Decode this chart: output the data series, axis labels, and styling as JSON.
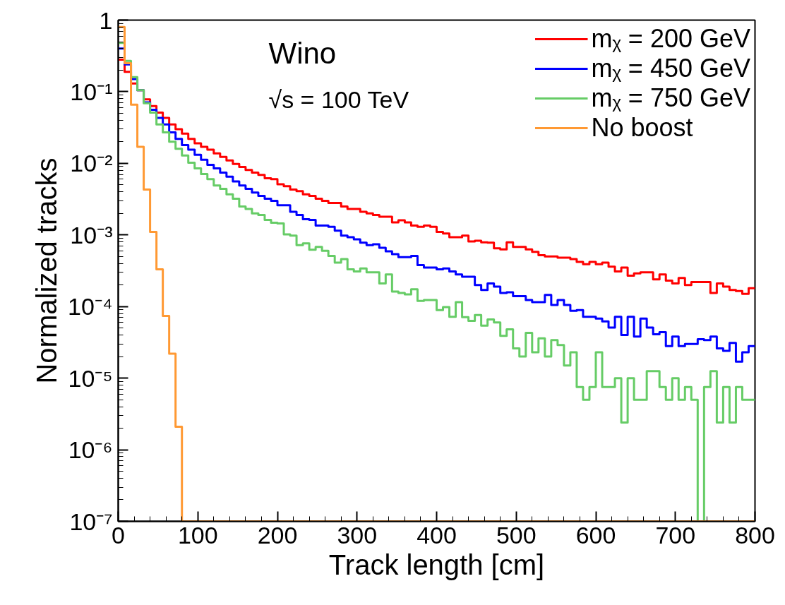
{
  "chart_data": {
    "type": "histogram",
    "xlabel": "Track length [cm]",
    "ylabel": "Normalized tracks",
    "annotations": [
      "Wino",
      "√s = 100 TeV"
    ],
    "bins": [
      0,
      8,
      16,
      24,
      32,
      40,
      48,
      56,
      64,
      72,
      80,
      88,
      96,
      104,
      112,
      120,
      128,
      136,
      144,
      152,
      160,
      168,
      176,
      184,
      192,
      200,
      208,
      216,
      224,
      232,
      240,
      248,
      256,
      264,
      272,
      280,
      288,
      296,
      304,
      312,
      320,
      328,
      336,
      344,
      352,
      360,
      368,
      376,
      384,
      392,
      400,
      408,
      416,
      424,
      432,
      440,
      448,
      456,
      464,
      472,
      480,
      488,
      496,
      504,
      512,
      520,
      528,
      536,
      544,
      552,
      560,
      568,
      576,
      584,
      592,
      600,
      608,
      616,
      624,
      632,
      640,
      648,
      656,
      664,
      672,
      680,
      688,
      696,
      704,
      712,
      720,
      728,
      736,
      744,
      752,
      760,
      768,
      776,
      784,
      792,
      800
    ],
    "series": [
      {
        "name": "mᵪ = 200 GeV",
        "color": "#ff0000",
        "values": [
          0.28,
          0.19,
          0.13,
          0.105,
          0.078,
          0.063,
          0.051,
          0.043,
          0.035,
          0.03,
          0.026,
          0.022,
          0.019,
          0.017,
          0.0155,
          0.0138,
          0.0123,
          0.011,
          0.0098,
          0.0089,
          0.0081,
          0.0074,
          0.0069,
          0.0062,
          0.006,
          0.0051,
          0.0048,
          0.0043,
          0.0041,
          0.0037,
          0.0035,
          0.0032,
          0.003,
          0.0028,
          0.0028,
          0.0025,
          0.0023,
          0.0023,
          0.0021,
          0.002,
          0.0019,
          0.0018,
          0.0018,
          0.0015,
          0.0016,
          0.0015,
          0.00135,
          0.0013,
          0.00135,
          0.0013,
          0.0011,
          0.00105,
          0.00093,
          0.00093,
          0.00098,
          0.00081,
          0.00083,
          0.00079,
          0.00078,
          0.00065,
          0.00063,
          0.00079,
          0.00068,
          0.00068,
          0.00063,
          0.00058,
          0.00052,
          0.0005,
          0.0005,
          0.00048,
          0.00048,
          0.00046,
          0.00042,
          0.00039,
          0.00042,
          0.00039,
          0.00041,
          0.00036,
          0.00031,
          0.00035,
          0.00027,
          0.00029,
          0.0003,
          0.0003,
          0.00024,
          0.00028,
          0.00023,
          0.00021,
          0.00025,
          0.0002,
          0.00022,
          0.00022,
          0.00022,
          0.000155,
          0.00021,
          0.00019,
          0.00017,
          0.000165,
          0.00015,
          0.00018
        ]
      },
      {
        "name": "mᵪ = 450 GeV",
        "color": "#0000ff",
        "values": [
          0.4,
          0.24,
          0.15,
          0.105,
          0.071,
          0.056,
          0.043,
          0.035,
          0.027,
          0.022,
          0.018,
          0.0155,
          0.0132,
          0.0112,
          0.0095,
          0.0085,
          0.0074,
          0.0065,
          0.0056,
          0.0049,
          0.0044,
          0.0039,
          0.0035,
          0.0032,
          0.003,
          0.0026,
          0.0026,
          0.0021,
          0.0019,
          0.00166,
          0.00162,
          0.00135,
          0.00135,
          0.0013,
          0.00115,
          0.00098,
          0.00093,
          0.00087,
          0.00078,
          0.00072,
          0.00074,
          0.00066,
          0.00059,
          0.00054,
          0.00049,
          0.00049,
          0.00051,
          0.00038,
          0.00035,
          0.00035,
          0.00033,
          0.00034,
          0.00031,
          0.00028,
          0.00026,
          0.00026,
          0.0002,
          0.00017,
          0.00021,
          0.00019,
          0.000155,
          0.000158,
          0.00014,
          0.00014,
          0.000123,
          0.000115,
          0.000115,
          0.000145,
          0.000105,
          0.000123,
          0.000105,
          8.7e-05,
          8.9e-05,
          7.2e-05,
          7.2e-05,
          6.8e-05,
          6.2e-05,
          5.1e-05,
          7.2e-05,
          4e-05,
          7.2e-05,
          3.8e-05,
          6.8e-05,
          5.1e-05,
          4.1e-05,
          4.4e-05,
          2.8e-05,
          3.8e-05,
          2.8e-05,
          3e-05,
          3e-05,
          3.5e-05,
          3.4e-05,
          3.8e-05,
          2.6e-05,
          2.4e-05,
          3.1e-05,
          1.7e-05,
          2.3e-05,
          2.8e-05
        ]
      },
      {
        "name": "mᵪ = 750 GeV",
        "color": "#66cc66",
        "values": [
          0.48,
          0.27,
          0.16,
          0.105,
          0.069,
          0.051,
          0.035,
          0.027,
          0.02,
          0.016,
          0.0129,
          0.0102,
          0.0085,
          0.0071,
          0.006,
          0.0049,
          0.0044,
          0.0037,
          0.0032,
          0.0025,
          0.0023,
          0.002,
          0.0019,
          0.00162,
          0.00148,
          0.00145,
          0.00102,
          0.00098,
          0.00072,
          0.00076,
          0.00062,
          0.00068,
          0.0006,
          0.00051,
          0.00041,
          0.00046,
          0.00033,
          0.00031,
          0.00034,
          0.0003,
          0.0003,
          0.00021,
          0.00028,
          0.000162,
          0.000155,
          0.000148,
          0.000174,
          0.00012,
          0.000123,
          0.000123,
          8.9e-05,
          9.8e-05,
          7.2e-05,
          0.000115,
          7.1e-05,
          6.3e-05,
          7.6e-05,
          5.4e-05,
          6.6e-05,
          6e-05,
          3.9e-05,
          4.8e-05,
          2.6e-05,
          2e-05,
          4.3e-05,
          2.3e-05,
          3.6e-05,
          2e-05,
          3.4e-05,
          2.9e-05,
          1.5e-05,
          2.3e-05,
          7.5e-06,
          5e-06,
          7.5e-06,
          2.3e-05,
          7.5e-06,
          7.5e-06,
          1e-05,
          2.4e-06,
          1e-05,
          5e-06,
          5e-06,
          1.25e-05,
          1.25e-05,
          7.5e-06,
          5e-06,
          1e-05,
          5e-06,
          7.5e-06,
          5e-06,
          null,
          7.5e-06,
          1.25e-05,
          2.4e-06,
          7.5e-06,
          2.4e-06,
          7.5e-06,
          5e-06,
          5e-06
        ]
      },
      {
        "name": "No boost",
        "color": "#ff9933",
        "values": [
          0.8,
          0.25,
          0.066,
          0.017,
          0.0043,
          0.0011,
          0.00033,
          7.4e-05,
          2.2e-05,
          2.1e-06,
          null,
          null,
          null,
          null,
          null,
          null,
          null,
          null,
          null,
          null,
          null,
          null,
          null,
          null,
          null,
          null,
          null,
          null,
          null,
          null,
          null,
          null,
          null,
          null,
          null,
          null,
          null,
          null,
          null,
          null,
          null,
          null,
          null,
          null,
          null,
          null,
          null,
          null,
          null,
          null,
          null,
          null,
          null,
          null,
          null,
          null,
          null,
          null,
          null,
          null,
          null,
          null,
          null,
          null,
          null,
          null,
          null,
          null,
          null,
          null,
          null,
          null,
          null,
          null,
          null,
          null,
          null,
          null,
          null,
          null,
          null,
          null,
          null,
          null,
          null,
          null,
          null,
          null,
          null,
          null,
          null,
          null,
          null,
          null,
          null,
          null,
          null,
          null,
          null,
          null
        ]
      }
    ],
    "xlim": [
      0,
      800
    ],
    "xticks": [
      0,
      100,
      200,
      300,
      400,
      500,
      600,
      700,
      800
    ],
    "ylim": [
      1e-07,
      1
    ],
    "yticks": [
      {
        "value": 1e-07,
        "label": "10⁻⁷"
      },
      {
        "value": 1e-06,
        "label": "10⁻⁶"
      },
      {
        "value": 1e-05,
        "label": "10⁻⁵"
      },
      {
        "value": 0.0001,
        "label": "10⁻⁴"
      },
      {
        "value": 0.001,
        "label": "10⁻³"
      },
      {
        "value": 0.01,
        "label": "10⁻²"
      },
      {
        "value": 0.1,
        "label": "10⁻¹"
      },
      1
    ],
    "log": "y",
    "grid": false,
    "legend": "top right",
    "line_style": "solid"
  }
}
